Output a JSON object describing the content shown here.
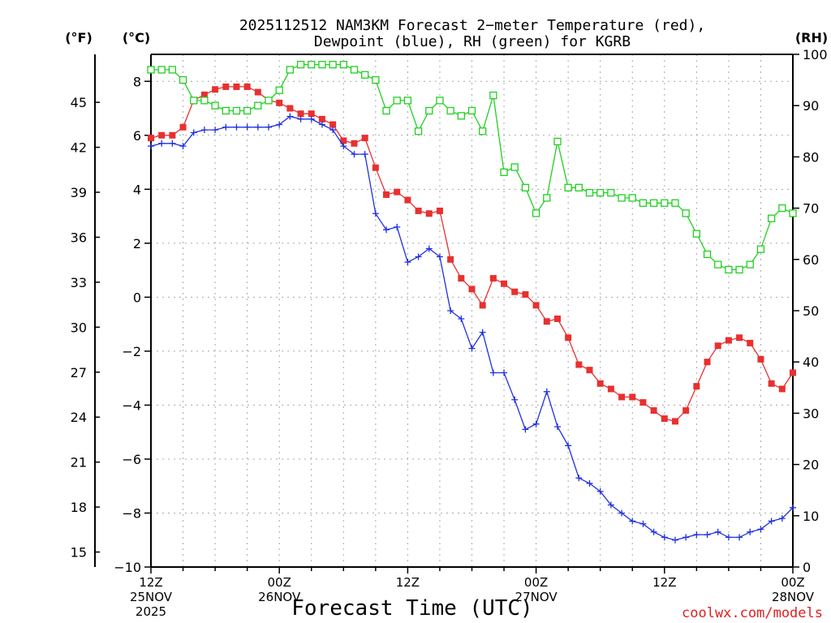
{
  "chart_data": {
    "type": "line",
    "title_line1": "2025112512 NAM3KM Forecast 2−meter Temperature (red),",
    "title_line2": "Dewpoint (blue), RH (green) for KGRB",
    "xlabel": "Forecast Time (UTC)",
    "credit": "coolwx.com/models",
    "left_unit_f": "(°F)",
    "left_unit_c": "(°C)",
    "right_unit": "(RH)",
    "ylim_c": [
      -10,
      9
    ],
    "ylim_rh": [
      0,
      100
    ],
    "hours_range": [
      0,
      60
    ],
    "yticks_c": [
      "8",
      "6",
      "4",
      "2",
      "0",
      "−2",
      "−4",
      "−6",
      "−8",
      "−10"
    ],
    "yticks_c_values": [
      8,
      6,
      4,
      2,
      0,
      -2,
      -4,
      -6,
      -8,
      -10
    ],
    "yticks_f": [
      "45",
      "42",
      "39",
      "36",
      "33",
      "30",
      "27",
      "24",
      "21",
      "18",
      "15"
    ],
    "yticks_f_values": [
      45,
      42,
      39,
      36,
      33,
      30,
      27,
      24,
      21,
      18,
      15
    ],
    "yticks_rh": [
      "100",
      "90",
      "80",
      "70",
      "60",
      "50",
      "40",
      "30",
      "20",
      "10",
      "0"
    ],
    "yticks_rh_values": [
      100,
      90,
      80,
      70,
      60,
      50,
      40,
      30,
      20,
      10,
      0
    ],
    "xticks": [
      {
        "hour": 0,
        "lines": [
          "12Z",
          "25NOV",
          "2025"
        ]
      },
      {
        "hour": 12,
        "lines": [
          "00Z",
          "26NOV"
        ]
      },
      {
        "hour": 24,
        "lines": [
          "12Z"
        ]
      },
      {
        "hour": 36,
        "lines": [
          "00Z",
          "27NOV"
        ]
      },
      {
        "hour": 48,
        "lines": [
          "12Z"
        ]
      },
      {
        "hour": 60,
        "lines": [
          "00Z",
          "28NOV"
        ]
      }
    ],
    "series": [
      {
        "name": "2-meter Temperature (°C)",
        "color": "#e83030",
        "marker": "filled-square",
        "axis": "celsius",
        "x": [
          0,
          1,
          2,
          3,
          4,
          5,
          6,
          7,
          8,
          9,
          10,
          11,
          12,
          13,
          14,
          15,
          16,
          17,
          18,
          19,
          20,
          21,
          22,
          23,
          24,
          25,
          26,
          27,
          28,
          29,
          30,
          31,
          32,
          33,
          34,
          35,
          36,
          37,
          38,
          39,
          40,
          41,
          42,
          43,
          44,
          45,
          46,
          47,
          48,
          49,
          50,
          51,
          52,
          53,
          54,
          55,
          56,
          57,
          58,
          59,
          60
        ],
        "values": [
          5.9,
          6.0,
          6.0,
          6.3,
          7.3,
          7.5,
          7.7,
          7.8,
          7.8,
          7.8,
          7.6,
          7.3,
          7.2,
          7.0,
          6.8,
          6.8,
          6.6,
          6.4,
          5.8,
          5.7,
          5.9,
          4.8,
          3.8,
          3.9,
          3.6,
          3.2,
          3.1,
          3.2,
          1.4,
          0.7,
          0.3,
          -0.3,
          0.7,
          0.5,
          0.2,
          0.1,
          -0.3,
          -0.9,
          -0.8,
          -1.5,
          -2.5,
          -2.7,
          -3.2,
          -3.4,
          -3.7,
          -3.7,
          -3.9,
          -4.2,
          -4.5,
          -4.6,
          -4.2,
          -3.3,
          -2.4,
          -1.8,
          -1.6,
          -1.5,
          -1.7,
          -2.3,
          -3.2,
          -3.4,
          -2.8
        ]
      },
      {
        "name": "Dewpoint (°C)",
        "color": "#2030e0",
        "marker": "plus",
        "axis": "celsius",
        "x": [
          0,
          1,
          2,
          3,
          4,
          5,
          6,
          7,
          8,
          9,
          10,
          11,
          12,
          13,
          14,
          15,
          16,
          17,
          18,
          19,
          20,
          21,
          22,
          23,
          24,
          25,
          26,
          27,
          28,
          29,
          30,
          31,
          32,
          33,
          34,
          35,
          36,
          37,
          38,
          39,
          40,
          41,
          42,
          43,
          44,
          45,
          46,
          47,
          48,
          49,
          50,
          51,
          52,
          53,
          54,
          55,
          56,
          57,
          58,
          59,
          60
        ],
        "values": [
          5.6,
          5.7,
          5.7,
          5.6,
          6.1,
          6.2,
          6.2,
          6.3,
          6.3,
          6.3,
          6.3,
          6.3,
          6.4,
          6.7,
          6.6,
          6.6,
          6.4,
          6.2,
          5.6,
          5.3,
          5.3,
          3.1,
          2.5,
          2.6,
          1.3,
          1.5,
          1.8,
          1.5,
          -0.5,
          -0.8,
          -1.9,
          -1.3,
          -2.8,
          -2.8,
          -3.8,
          -4.9,
          -4.7,
          -3.5,
          -4.8,
          -5.5,
          -6.7,
          -6.9,
          -7.2,
          -7.7,
          -8.0,
          -8.3,
          -8.4,
          -8.7,
          -8.9,
          -9.0,
          -8.9,
          -8.8,
          -8.8,
          -8.7,
          -8.9,
          -8.9,
          -8.7,
          -8.6,
          -8.3,
          -8.2,
          -7.8
        ]
      },
      {
        "name": "RH (%)",
        "color": "#20d020",
        "marker": "open-square",
        "axis": "rh",
        "x": [
          0,
          1,
          2,
          3,
          4,
          5,
          6,
          7,
          8,
          9,
          10,
          11,
          12,
          13,
          14,
          15,
          16,
          17,
          18,
          19,
          20,
          21,
          22,
          23,
          24,
          25,
          26,
          27,
          28,
          29,
          30,
          31,
          32,
          33,
          34,
          35,
          36,
          37,
          38,
          39,
          40,
          41,
          42,
          43,
          44,
          45,
          46,
          47,
          48,
          49,
          50,
          51,
          52,
          53,
          54,
          55,
          56,
          57,
          58,
          59,
          60
        ],
        "values": [
          97,
          97,
          97,
          95,
          91,
          91,
          90,
          89,
          89,
          89,
          90,
          91,
          93,
          97,
          98,
          98,
          98,
          98,
          98,
          97,
          96,
          95,
          89,
          91,
          91,
          85,
          89,
          91,
          89,
          88,
          89,
          85,
          92,
          77,
          78,
          74,
          69,
          72,
          83,
          74,
          74,
          73,
          73,
          73,
          72,
          72,
          71,
          71,
          71,
          71,
          69,
          65,
          61,
          59,
          58,
          58,
          59,
          62,
          68,
          70,
          69
        ]
      }
    ]
  }
}
